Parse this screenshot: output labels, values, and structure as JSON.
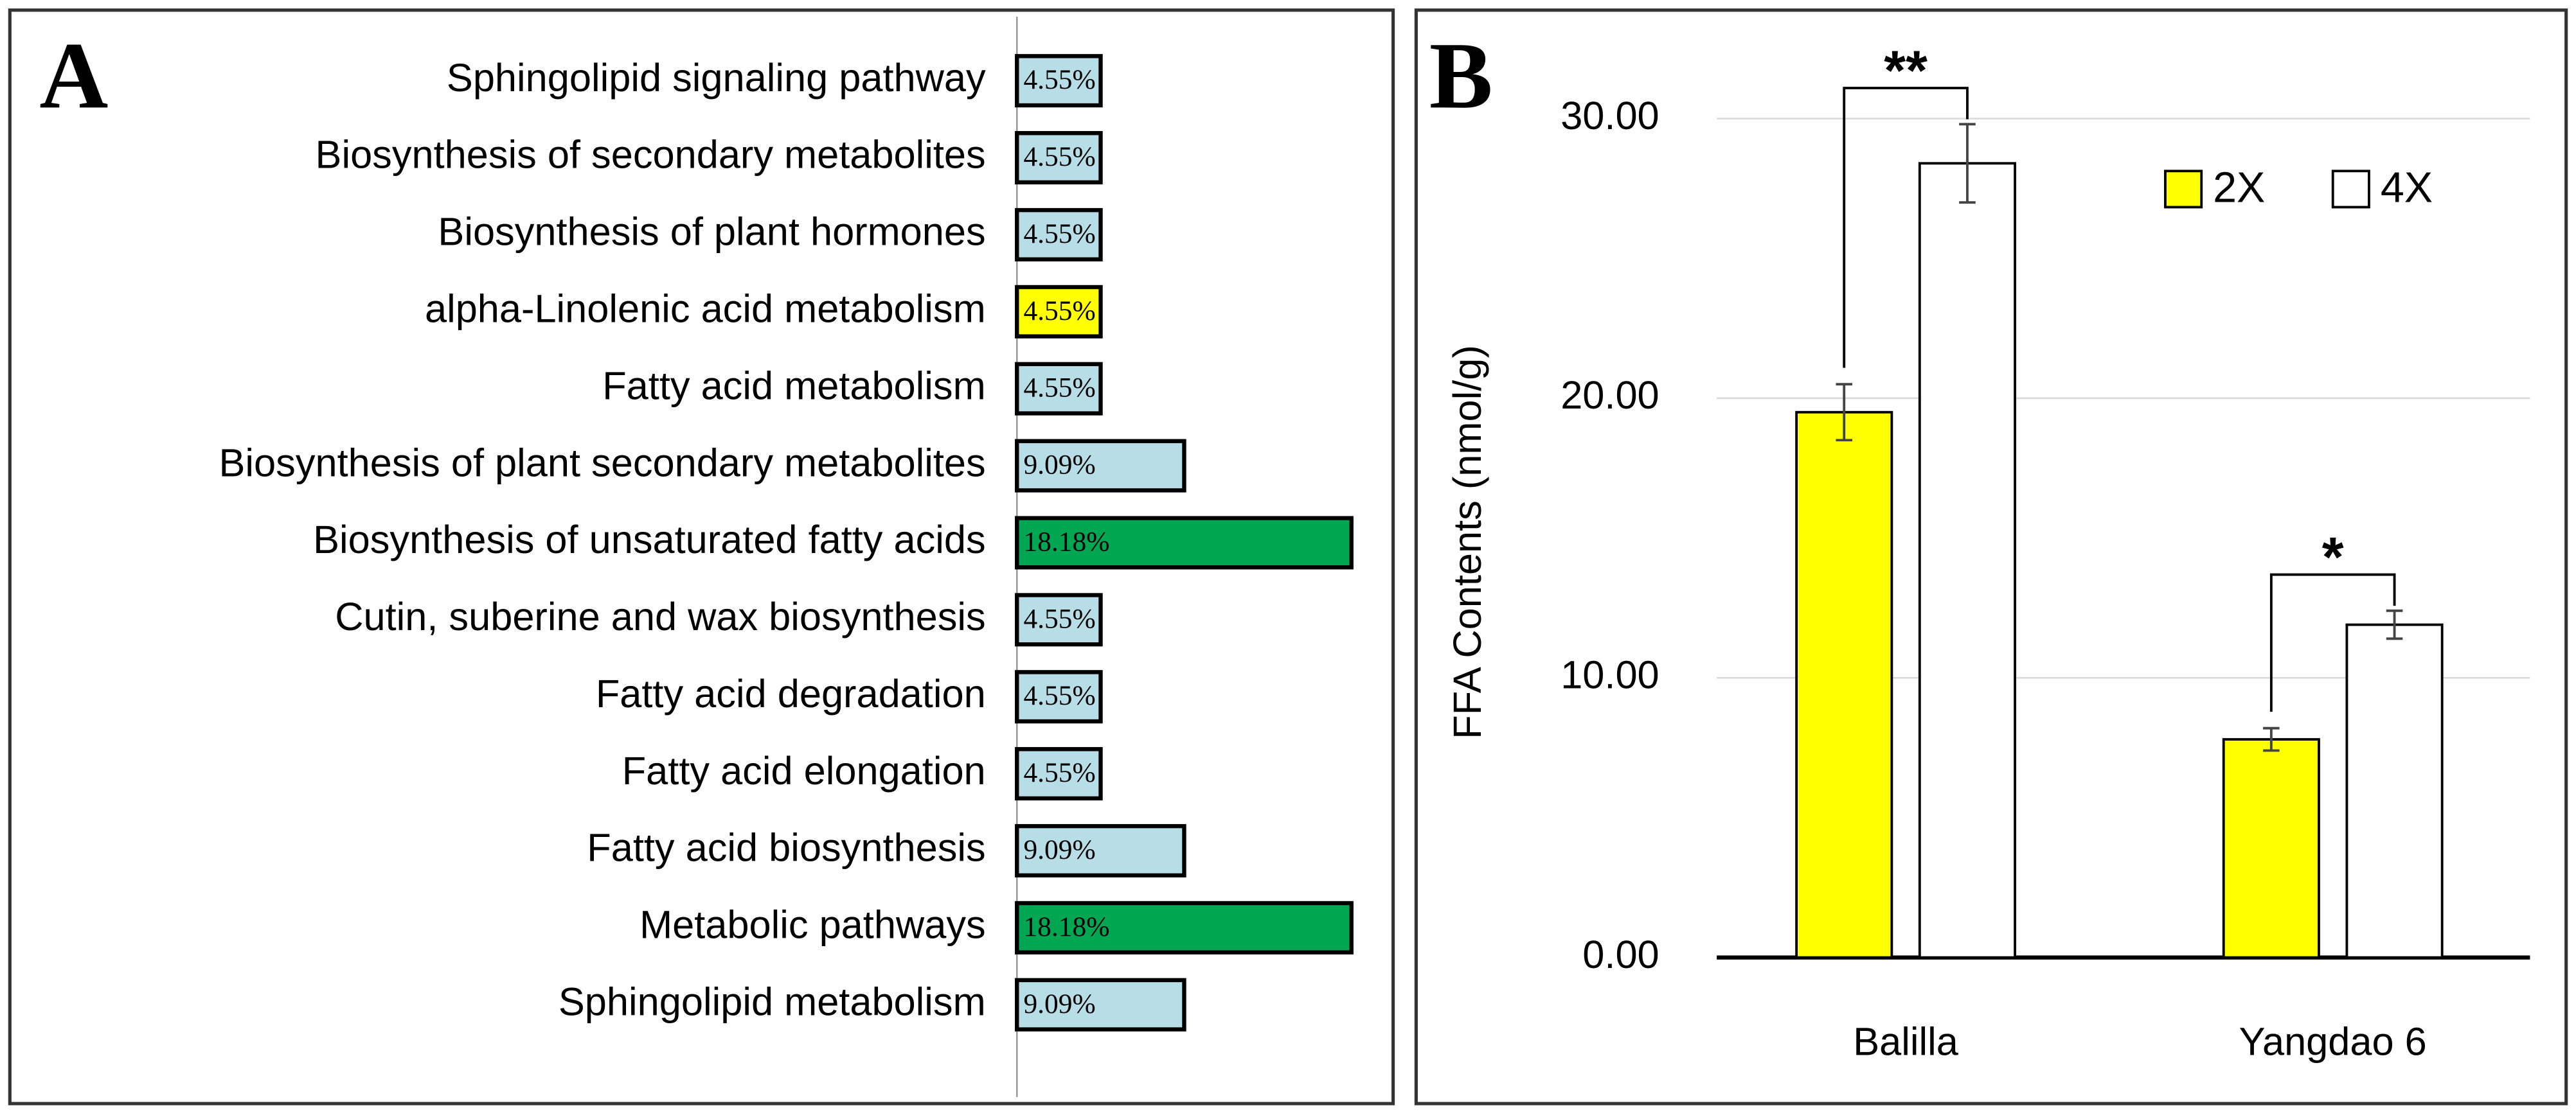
{
  "chart_data": [
    {
      "type": "hbar",
      "panel_label": "A",
      "categories": [
        "Sphingolipid signaling pathway",
        "Biosynthesis of secondary metabolites",
        "Biosynthesis of plant hormones",
        "alpha-Linolenic acid metabolism",
        "Fatty acid metabolism",
        "Biosynthesis of plant secondary metabolites",
        "Biosynthesis of unsaturated fatty acids",
        "Cutin, suberine and wax biosynthesis",
        "Fatty acid degradation",
        "Fatty acid elongation",
        "Fatty acid biosynthesis",
        "Metabolic pathways",
        "Sphingolipid metabolism"
      ],
      "values": [
        4.55,
        4.55,
        4.55,
        4.55,
        4.55,
        9.09,
        18.18,
        4.55,
        4.55,
        4.55,
        9.09,
        18.18,
        9.09
      ],
      "value_labels": [
        "4.55%",
        "4.55%",
        "4.55%",
        "4.55%",
        "4.55%",
        "9.09%",
        "18.18%",
        "4.55%",
        "4.55%",
        "4.55%",
        "9.09%",
        "18.18%",
        "9.09%"
      ],
      "colors": [
        "#b7dee6",
        "#b7dee6",
        "#b7dee6",
        "#ffff00",
        "#b7dee6",
        "#b7dee6",
        "#00a651",
        "#b7dee6",
        "#b7dee6",
        "#b7dee6",
        "#b7dee6",
        "#00a651",
        "#b7dee6"
      ]
    },
    {
      "type": "bar",
      "panel_label": "B",
      "ylabel": "FFA Contents (nmol/g)",
      "categories": [
        "Balilla",
        "Yangdao 6"
      ],
      "series": [
        {
          "name": "2X",
          "color": "#ffff00",
          "values": [
            19.5,
            7.8
          ],
          "errors": [
            1.0,
            0.4
          ]
        },
        {
          "name": "4X",
          "color": "#ffffff",
          "values": [
            28.4,
            11.9
          ],
          "errors": [
            1.4,
            0.5
          ]
        }
      ],
      "annotations": [
        "**",
        "*"
      ],
      "ylim": [
        0,
        32
      ],
      "yticks": [
        {
          "value": 0,
          "label": "0.00"
        },
        {
          "value": 10,
          "label": "10.00"
        },
        {
          "value": 20,
          "label": "20.00"
        },
        {
          "value": 30,
          "label": "30.00"
        }
      ],
      "grid": true,
      "legend": "upper right"
    }
  ]
}
